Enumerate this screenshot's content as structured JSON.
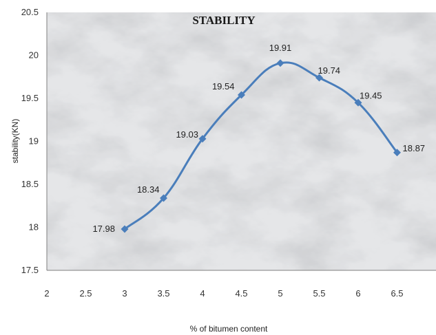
{
  "chart_data": {
    "type": "line",
    "title": "STABILITY",
    "xlabel": "% of bitumen content",
    "ylabel": "stability(KN)",
    "xlim": [
      2,
      7
    ],
    "ylim": [
      17.5,
      20.5
    ],
    "x_ticks": [
      "2",
      "2.5",
      "3",
      "3.5",
      "4",
      "4.5",
      "5",
      "5.5",
      "6",
      "6.5"
    ],
    "y_ticks": [
      "17.5",
      "18",
      "18.5",
      "19",
      "19.5",
      "20",
      "20.5"
    ],
    "grid": false,
    "marker": "diamond",
    "series": [
      {
        "x": [
          3,
          3.5,
          4,
          4.5,
          5,
          5.5,
          6,
          6.5
        ],
        "values": [
          17.98,
          18.34,
          19.03,
          19.54,
          19.91,
          19.74,
          19.45,
          18.87
        ],
        "labels": [
          "17.98",
          "18.34",
          "19.03",
          "19.54",
          "19.91",
          "19.74",
          "19.45",
          "18.87"
        ],
        "color": "#4a7ebb"
      }
    ],
    "plot_background": "marble texture (light grey)"
  }
}
